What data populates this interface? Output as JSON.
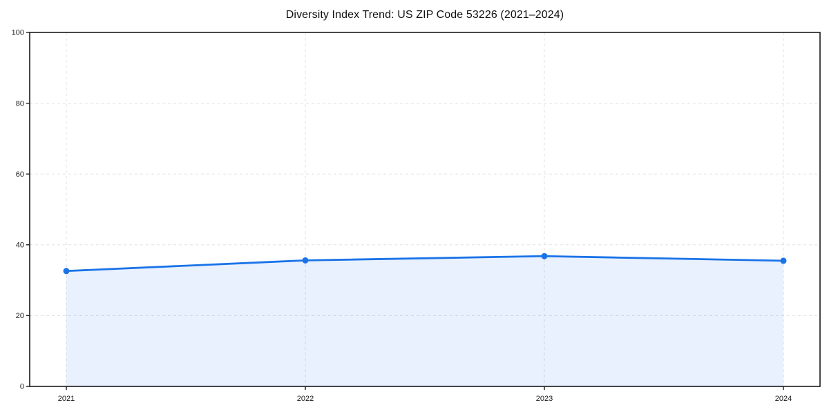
{
  "chart_data": {
    "type": "line",
    "title": "Diversity Index Trend: US ZIP Code 53226 (2021–2024)",
    "x": [
      "2021",
      "2022",
      "2023",
      "2024"
    ],
    "series": [
      {
        "name": "Diversity Index",
        "values": [
          32.6,
          35.6,
          36.8,
          35.5
        ]
      }
    ],
    "xlabel": "",
    "ylabel": "",
    "ylim": [
      0,
      100
    ],
    "yticks": [
      0,
      20,
      40,
      60,
      80,
      100
    ],
    "grid": true,
    "grid_style": "dashed",
    "legend_position": "none",
    "area_fill": true,
    "marker": "circle"
  },
  "colors": {
    "line": "#1a73e8",
    "marker": "#1a73e8",
    "area_fill_rgba": "rgba(26,115,232,0.10)",
    "grid": "#e0e0e0",
    "axis_frame": "#1a1a1a",
    "tick_label": "#1a1a1a",
    "background": "#ffffff"
  }
}
